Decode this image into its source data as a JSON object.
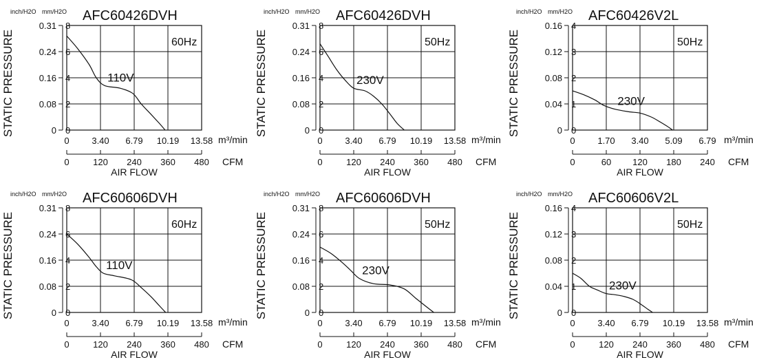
{
  "chart_data": [
    {
      "type": "line",
      "title": "AFC60426DVH",
      "frequency": "60Hz",
      "voltage": "110V",
      "units_left": "inch/H2O",
      "units_right": "mm/H2O",
      "ylabel": "STATIC PRESSURE",
      "xlabel": "AIR FLOW",
      "x_unit_top": "m³/min",
      "x_unit_bottom": "CFM",
      "y_ticks_inch": [
        "0.31",
        "0.24",
        "0.16",
        "0.08",
        "0"
      ],
      "y_ticks_mm": [
        "8",
        "6",
        "4",
        "2",
        "0"
      ],
      "x_ticks_m3": [
        "0",
        "3.40",
        "6.79",
        "10.19",
        "13.58"
      ],
      "x_ticks_cfm": [
        "0",
        "120",
        "240",
        "360",
        "480"
      ],
      "xlim": [
        0,
        480
      ],
      "ylim": [
        0,
        8
      ],
      "grid": true,
      "series": [
        {
          "name": "110V",
          "x_unit": "CFM",
          "y_unit": "mm/H2O",
          "x": [
            0,
            40,
            80,
            105,
            135,
            190,
            235,
            265,
            300,
            330,
            350
          ],
          "y": [
            7.2,
            6.2,
            5.0,
            4.0,
            3.4,
            3.2,
            2.8,
            2.0,
            1.2,
            0.5,
            0
          ]
        }
      ]
    },
    {
      "type": "line",
      "title": "AFC60426DVH",
      "frequency": "50Hz",
      "voltage": "230V",
      "units_left": "inch/H2O",
      "units_right": "mm/H2O",
      "ylabel": "STATIC PRESSURE",
      "xlabel": "AIR FLOW",
      "x_unit_top": "m³/min",
      "x_unit_bottom": "CFM",
      "y_ticks_inch": [
        "0.31",
        "0.24",
        "0.16",
        "0.08",
        "0"
      ],
      "y_ticks_mm": [
        "8",
        "6",
        "4",
        "2",
        "0"
      ],
      "x_ticks_m3": [
        "0",
        "3.40",
        "6.79",
        "10.19",
        "13.58"
      ],
      "x_ticks_cfm": [
        "0",
        "120",
        "240",
        "360",
        "480"
      ],
      "xlim": [
        0,
        480
      ],
      "ylim": [
        0,
        8
      ],
      "grid": true,
      "series": [
        {
          "name": "230V",
          "x_unit": "CFM",
          "y_unit": "mm/H2O",
          "x": [
            0,
            30,
            60,
            90,
            120,
            160,
            190,
            220,
            250,
            275,
            300
          ],
          "y": [
            6.6,
            5.6,
            4.6,
            3.8,
            3.2,
            3.0,
            2.6,
            2.0,
            1.2,
            0.5,
            0
          ]
        }
      ]
    },
    {
      "type": "line",
      "title": "AFC60426V2L",
      "frequency": "50Hz",
      "voltage": "230V",
      "units_left": "inch/H2O",
      "units_right": "mm/H2O",
      "ylabel": "STATIC PRESSURE",
      "xlabel": "AIR FLOW",
      "x_unit_top": "m³/min",
      "x_unit_bottom": "CFM",
      "y_ticks_inch": [
        "0.16",
        "0.12",
        "0.08",
        "0.04",
        "0"
      ],
      "y_ticks_mm": [
        "4",
        "3",
        "2",
        "1",
        "0"
      ],
      "x_ticks_m3": [
        "0",
        "1.70",
        "3.40",
        "5.09",
        "6.79"
      ],
      "x_ticks_cfm": [
        "0",
        "60",
        "120",
        "180",
        "240"
      ],
      "xlim": [
        0,
        240
      ],
      "ylim": [
        0,
        4
      ],
      "grid": true,
      "series": [
        {
          "name": "230V",
          "x_unit": "CFM",
          "y_unit": "mm/H2O",
          "x": [
            0,
            20,
            40,
            55,
            75,
            100,
            120,
            140,
            155,
            168,
            178
          ],
          "y": [
            1.5,
            1.35,
            1.15,
            0.95,
            0.8,
            0.7,
            0.65,
            0.5,
            0.32,
            0.15,
            0
          ]
        }
      ]
    },
    {
      "type": "line",
      "title": "AFC60606DVH",
      "frequency": "60Hz",
      "voltage": "110V",
      "units_left": "inch/H2O",
      "units_right": "mm/H2O",
      "ylabel": "STATIC PRESSURE",
      "xlabel": "AIR FLOW",
      "x_unit_top": "m³/min",
      "x_unit_bottom": "CFM",
      "y_ticks_inch": [
        "0.31",
        "0.24",
        "0.16",
        "0.08",
        "0"
      ],
      "y_ticks_mm": [
        "8",
        "6",
        "4",
        "2",
        "0"
      ],
      "x_ticks_m3": [
        "0",
        "3.40",
        "6.79",
        "10.19",
        "13.58"
      ],
      "x_ticks_cfm": [
        "0",
        "120",
        "240",
        "360",
        "480"
      ],
      "xlim": [
        0,
        480
      ],
      "ylim": [
        0,
        8
      ],
      "grid": true,
      "series": [
        {
          "name": "110V",
          "x_unit": "CFM",
          "y_unit": "mm/H2O",
          "x": [
            0,
            40,
            80,
            105,
            130,
            170,
            230,
            265,
            300,
            330,
            352
          ],
          "y": [
            6.0,
            5.2,
            4.2,
            3.5,
            3.0,
            2.8,
            2.5,
            1.9,
            1.2,
            0.5,
            0
          ]
        }
      ]
    },
    {
      "type": "line",
      "title": "AFC60606DVH",
      "frequency": "50Hz",
      "voltage": "230V",
      "units_left": "inch/H2O",
      "units_right": "mm/H2O",
      "ylabel": "STATIC PRESSURE",
      "xlabel": "AIR FLOW",
      "x_unit_top": "m³/min",
      "x_unit_bottom": "CFM",
      "y_ticks_inch": [
        "0.31",
        "0.24",
        "0.16",
        "0.08",
        "0"
      ],
      "y_ticks_mm": [
        "8",
        "6",
        "4",
        "2",
        "0"
      ],
      "x_ticks_m3": [
        "0",
        "3.40",
        "6.79",
        "10.19",
        "13.58"
      ],
      "x_ticks_cfm": [
        "0",
        "120",
        "240",
        "360",
        "480"
      ],
      "xlim": [
        0,
        480
      ],
      "ylim": [
        0,
        8
      ],
      "grid": true,
      "series": [
        {
          "name": "230V",
          "x_unit": "CFM",
          "y_unit": "mm/H2O",
          "x": [
            0,
            40,
            80,
            110,
            140,
            190,
            250,
            300,
            340,
            375,
            405
          ],
          "y": [
            5.0,
            4.5,
            3.8,
            3.2,
            2.6,
            2.2,
            2.1,
            1.8,
            1.1,
            0.5,
            0
          ]
        }
      ]
    },
    {
      "type": "line",
      "title": "AFC60606V2L",
      "frequency": "50Hz",
      "voltage": "230V",
      "units_left": "inch/H2O",
      "units_right": "mm/H2O",
      "ylabel": "STATIC PRESSURE",
      "xlabel": "AIR FLOW",
      "x_unit_top": "m³/min",
      "x_unit_bottom": "CFM",
      "y_ticks_inch": [
        "0.16",
        "0.12",
        "0.08",
        "0.04",
        "0"
      ],
      "y_ticks_mm": [
        "4",
        "3",
        "2",
        "1",
        "0"
      ],
      "x_ticks_m3": [
        "0",
        "3.40",
        "6.79",
        "10.19",
        "13.58"
      ],
      "x_ticks_cfm": [
        "0",
        "120",
        "240",
        "360",
        "480"
      ],
      "xlim": [
        0,
        480
      ],
      "ylim": [
        0,
        4
      ],
      "grid": true,
      "series": [
        {
          "name": "230V",
          "x_unit": "CFM",
          "y_unit": "mm/H2O",
          "x": [
            0,
            30,
            60,
            90,
            120,
            150,
            180,
            215,
            245,
            268,
            285
          ],
          "y": [
            1.5,
            1.3,
            1.0,
            0.85,
            0.72,
            0.68,
            0.62,
            0.5,
            0.3,
            0.12,
            0
          ]
        }
      ]
    }
  ]
}
